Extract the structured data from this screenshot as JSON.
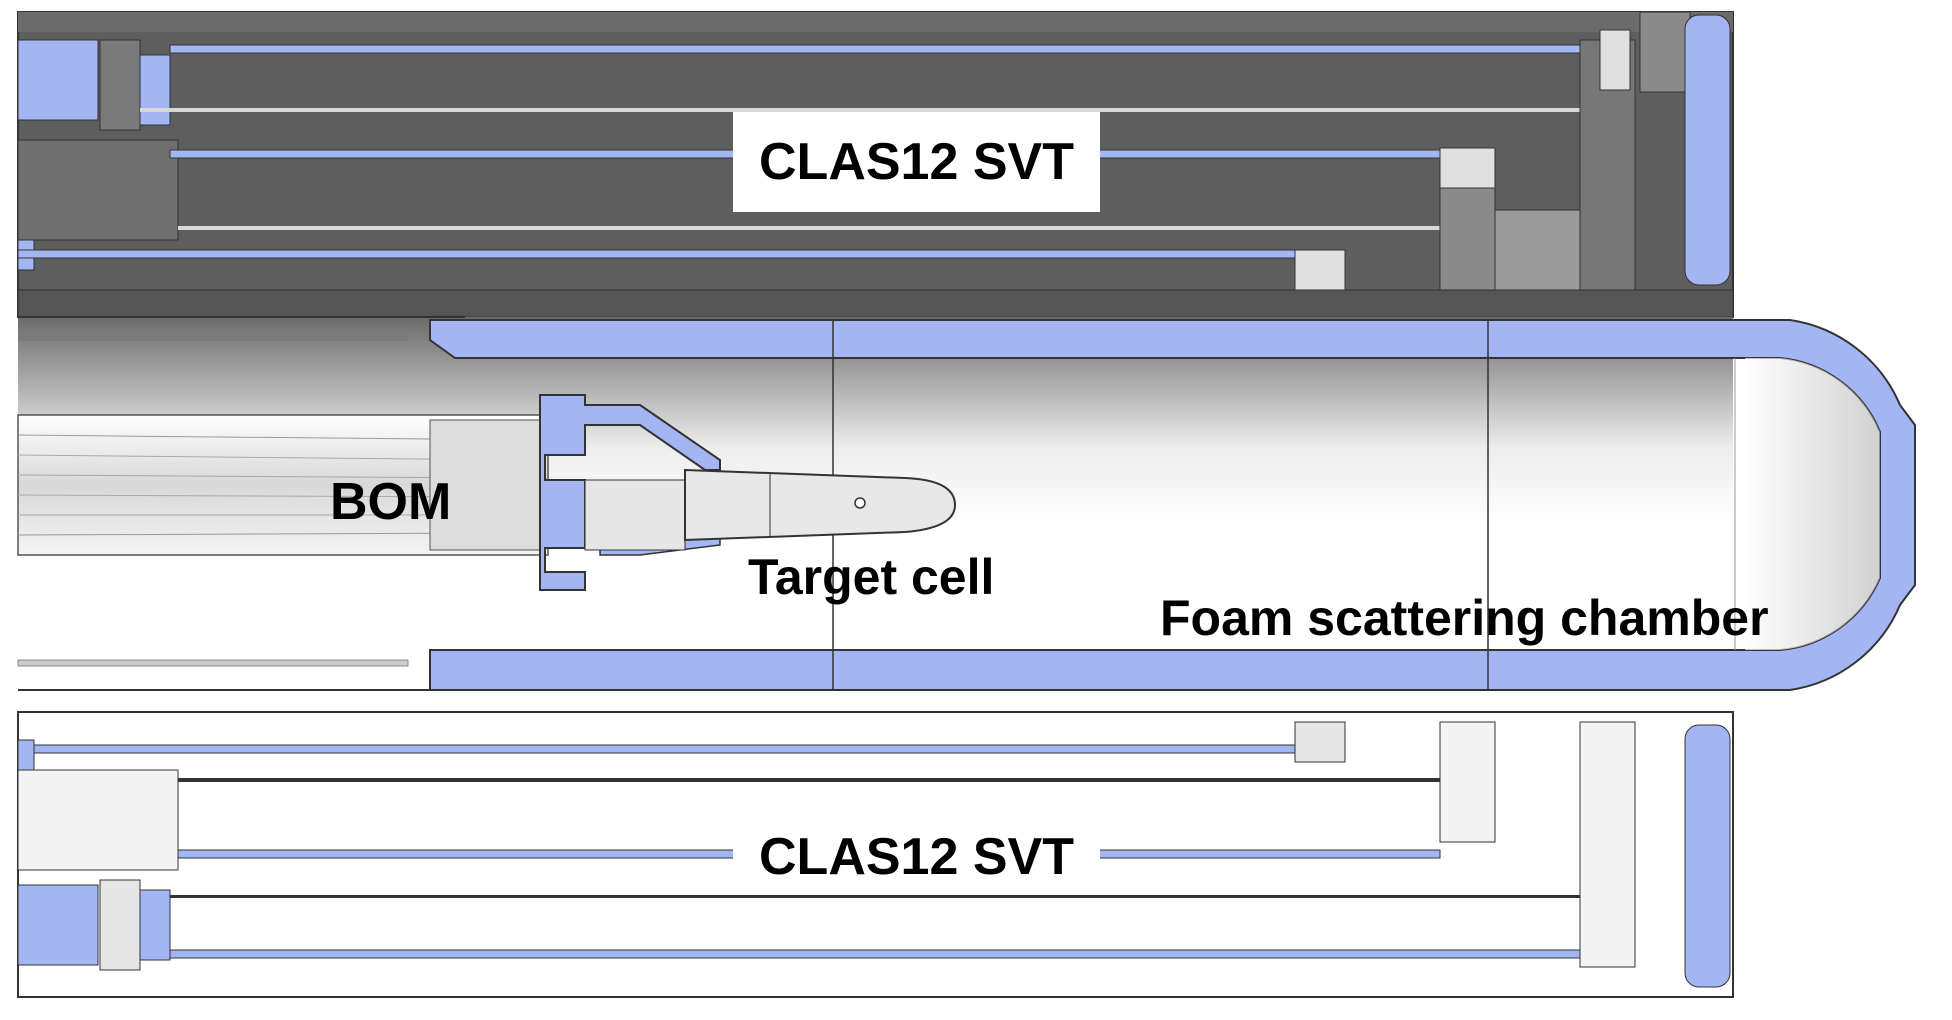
{
  "diagram": {
    "labels": {
      "svt_top": "CLAS12 SVT",
      "svt_bottom": "CLAS12 SVT",
      "bom": "BOM",
      "target_cell": "Target cell",
      "foam_chamber": "Foam scattering chamber"
    },
    "colors": {
      "structure_blue": "#a3b6f3",
      "dark_gray": "#5e5e5e",
      "outline": "#3a3a3a",
      "background": "#ffffff"
    }
  }
}
